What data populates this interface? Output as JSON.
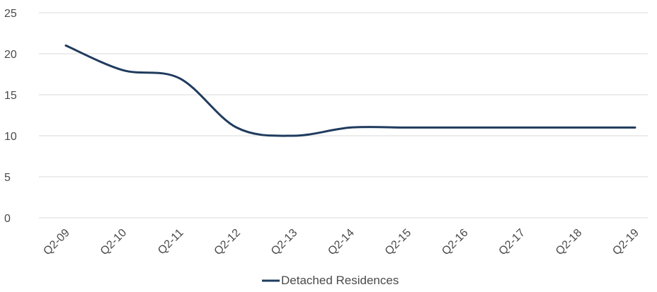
{
  "chart_data": {
    "type": "line",
    "title": "",
    "xlabel": "",
    "ylabel": "",
    "categories": [
      "Q2-09",
      "Q2-10",
      "Q2-11",
      "Q2-12",
      "Q2-13",
      "Q2-14",
      "Q2-15",
      "Q2-16",
      "Q2-17",
      "Q2-18",
      "Q2-19"
    ],
    "series": [
      {
        "name": "Detached Residences",
        "values": [
          21,
          18,
          17,
          11,
          10,
          11,
          11,
          11,
          11,
          11,
          11
        ],
        "color": "#1f3b5e"
      }
    ],
    "ylim": [
      0,
      25
    ],
    "yticks": [
      0,
      5,
      10,
      15,
      20,
      25
    ],
    "grid": true,
    "gridColor": "#d9d9d9",
    "smooth": true,
    "legend_position": "bottom-center"
  }
}
